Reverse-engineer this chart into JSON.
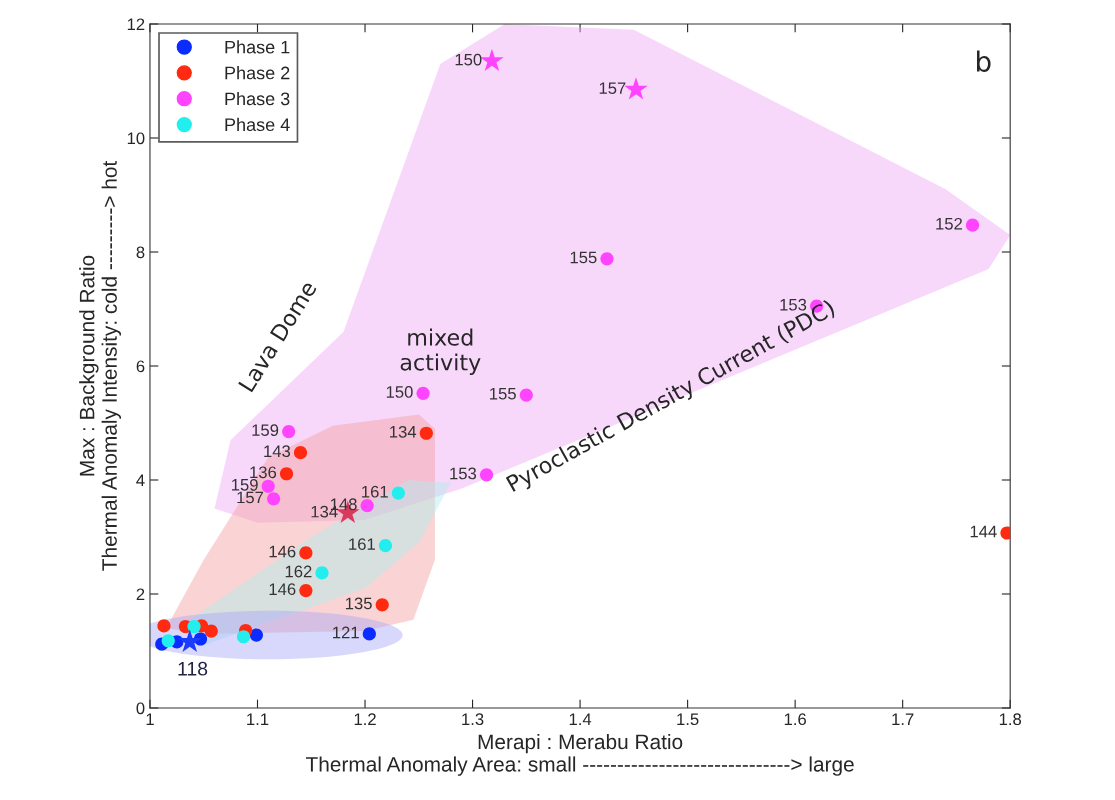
{
  "chart_data": {
    "type": "scatter",
    "xlabel": "Merapi : Merabu Ratio\nThermal Anomaly Area: small ------------------------------> large",
    "ylabel": "Max : Background Ratio\nThermal Anomaly Intensity: cold ---------> hot",
    "xlim": [
      1,
      1.8
    ],
    "xticks": [
      1,
      1.1,
      1.2,
      1.3,
      1.4,
      1.5,
      1.6,
      1.7,
      1.8
    ],
    "ylim": [
      0,
      12
    ],
    "yticks": [
      0,
      2,
      4,
      6,
      8,
      10,
      12
    ],
    "grid": false,
    "legend": "top left",
    "marker": "circle",
    "series": [
      {
        "name": "Phase 1",
        "color": "#0a2cff",
        "x": [
          1.011,
          1.025,
          1.047,
          1.099,
          1.204
        ],
        "values": [
          1.12,
          1.16,
          1.21,
          1.28,
          1.3
        ]
      },
      {
        "name": "Phase 2",
        "color": "#ff2a10",
        "x": [
          1.013,
          1.033,
          1.048,
          1.057,
          1.089,
          1.145,
          1.145,
          1.216,
          1.257,
          1.14,
          1.127,
          1.797
        ],
        "values": [
          1.44,
          1.43,
          1.44,
          1.35,
          1.36,
          2.72,
          2.06,
          1.81,
          4.82,
          4.48,
          4.11,
          3.07
        ]
      },
      {
        "name": "Phase 3",
        "color": "#ff44ff",
        "x": [
          1.129,
          1.11,
          1.115,
          1.202,
          1.313,
          1.254,
          1.35,
          1.425,
          1.62,
          1.765
        ],
        "values": [
          4.85,
          3.89,
          3.67,
          3.55,
          4.09,
          5.52,
          5.49,
          7.88,
          7.05,
          8.47
        ]
      },
      {
        "name": "Phase 4",
        "color": "#22eeee",
        "x": [
          1.017,
          1.041,
          1.087,
          1.16,
          1.219,
          1.231
        ],
        "values": [
          1.18,
          1.43,
          1.25,
          2.37,
          2.85,
          3.77
        ]
      },
      {
        "color": "#1a3cff",
        "marker": "star",
        "x": [
          1.037
        ],
        "values": [
          1.16
        ]
      },
      {
        "color": "#d83a5c",
        "marker": "star",
        "x": [
          1.184
        ],
        "values": [
          3.42
        ]
      },
      {
        "color": "#ff44ff",
        "marker": "star",
        "x": [
          1.318,
          1.452
        ],
        "values": [
          11.35,
          10.85
        ]
      }
    ],
    "annotations": [
      {
        "text": "121",
        "x": 1.204,
        "y": 1.3
      },
      {
        "text": "118",
        "x": 1.037,
        "y": 1.16
      },
      {
        "text": "146",
        "x": 1.145,
        "y": 2.72
      },
      {
        "text": "146",
        "x": 1.145,
        "y": 2.06
      },
      {
        "text": "135",
        "x": 1.216,
        "y": 1.81
      },
      {
        "text": "134",
        "x": 1.184,
        "y": 3.42
      },
      {
        "text": "134",
        "x": 1.257,
        "y": 4.82
      },
      {
        "text": "143",
        "x": 1.14,
        "y": 4.48
      },
      {
        "text": "136",
        "x": 1.127,
        "y": 4.11
      },
      {
        "text": "144",
        "x": 1.797,
        "y": 3.07
      },
      {
        "text": "159",
        "x": 1.129,
        "y": 4.85
      },
      {
        "text": "159",
        "x": 1.11,
        "y": 3.89
      },
      {
        "text": "157",
        "x": 1.115,
        "y": 3.67
      },
      {
        "text": "148",
        "x": 1.202,
        "y": 3.55
      },
      {
        "text": "153",
        "x": 1.313,
        "y": 4.09
      },
      {
        "text": "150",
        "x": 1.254,
        "y": 5.52
      },
      {
        "text": "155",
        "x": 1.35,
        "y": 5.49
      },
      {
        "text": "155",
        "x": 1.425,
        "y": 7.88
      },
      {
        "text": "153",
        "x": 1.62,
        "y": 7.05
      },
      {
        "text": "152",
        "x": 1.765,
        "y": 8.47
      },
      {
        "text": "161",
        "x": 1.231,
        "y": 3.77
      },
      {
        "text": "161",
        "x": 1.219,
        "y": 2.85
      },
      {
        "text": "162",
        "x": 1.16,
        "y": 2.37
      },
      {
        "text": "150",
        "x": 1.318,
        "y": 11.35
      },
      {
        "text": "157",
        "x": 1.452,
        "y": 10.85
      },
      "Lava Dome",
      "mixed\nactivity",
      "Pyroclastic Density Current (PDC)",
      "b"
    ]
  }
}
